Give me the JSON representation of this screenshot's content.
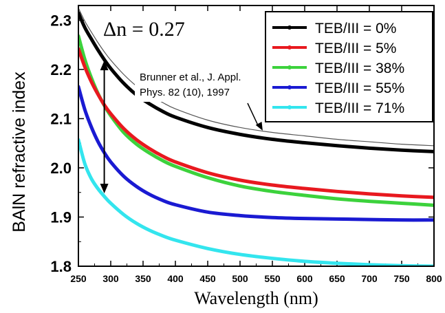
{
  "chart_data": {
    "type": "line",
    "xlabel": "Wavelength (nm)",
    "ylabel": "BAlN refractive index",
    "xlim": [
      250,
      800
    ],
    "ylim": [
      1.8,
      2.33
    ],
    "x_ticks": [
      "250",
      "300",
      "350",
      "400",
      "450",
      "500",
      "550",
      "600",
      "650",
      "700",
      "750",
      "800"
    ],
    "y_ticks": [
      "1.8",
      "1.9",
      "2.0",
      "2.1",
      "2.2",
      "2.3"
    ],
    "grid": false,
    "legend_position": "top-right",
    "x": [
      250,
      260,
      270,
      280,
      290,
      300,
      320,
      340,
      360,
      380,
      400,
      450,
      500,
      550,
      600,
      650,
      700,
      750,
      800
    ],
    "series": [
      {
        "name": "TEB/III = 0%",
        "color": "#000000",
        "values": [
          2.315,
          2.285,
          2.262,
          2.24,
          2.22,
          2.202,
          2.172,
          2.148,
          2.13,
          2.115,
          2.103,
          2.082,
          2.068,
          2.058,
          2.051,
          2.045,
          2.04,
          2.036,
          2.033
        ]
      },
      {
        "name": "TEB/III = 5%",
        "color": "#e8191f",
        "values": [
          2.242,
          2.205,
          2.175,
          2.15,
          2.128,
          2.11,
          2.08,
          2.057,
          2.039,
          2.024,
          2.012,
          1.99,
          1.975,
          1.965,
          1.958,
          1.952,
          1.947,
          1.943,
          1.94
        ]
      },
      {
        "name": "TEB/III = 38%",
        "color": "#3cd23c",
        "values": [
          2.268,
          2.22,
          2.183,
          2.152,
          2.127,
          2.106,
          2.072,
          2.048,
          2.03,
          2.015,
          2.003,
          1.98,
          1.963,
          1.952,
          1.944,
          1.937,
          1.932,
          1.928,
          1.924
        ]
      },
      {
        "name": "TEB/III = 55%",
        "color": "#1a1ad2",
        "values": [
          2.165,
          2.118,
          2.083,
          2.054,
          2.031,
          2.012,
          1.983,
          1.962,
          1.946,
          1.934,
          1.925,
          1.91,
          1.903,
          1.899,
          1.897,
          1.896,
          1.895,
          1.894,
          1.894
        ]
      },
      {
        "name": "TEB/III = 71%",
        "color": "#33e5ee",
        "values": [
          2.057,
          2.008,
          1.978,
          1.958,
          1.942,
          1.928,
          1.905,
          1.887,
          1.873,
          1.862,
          1.853,
          1.836,
          1.824,
          1.816,
          1.81,
          1.806,
          1.803,
          1.801,
          1.8
        ]
      }
    ],
    "reference_curve": {
      "color": "#555555",
      "values": [
        2.325,
        2.298,
        2.276,
        2.255,
        2.236,
        2.219,
        2.19,
        2.166,
        2.148,
        2.133,
        2.12,
        2.097,
        2.082,
        2.072,
        2.065,
        2.058,
        2.053,
        2.048,
        2.045
      ]
    },
    "annotations": {
      "delta_n": "Δn = 0.27",
      "reference_line1": "Brunner et al., J. Appl.",
      "reference_line2": "Phys. 82 (10), 1997",
      "arrow_x": 290,
      "arrow_y_top": 2.218,
      "arrow_y_bottom": 1.948,
      "pointer_to": [
        535,
        2.07
      ]
    }
  }
}
